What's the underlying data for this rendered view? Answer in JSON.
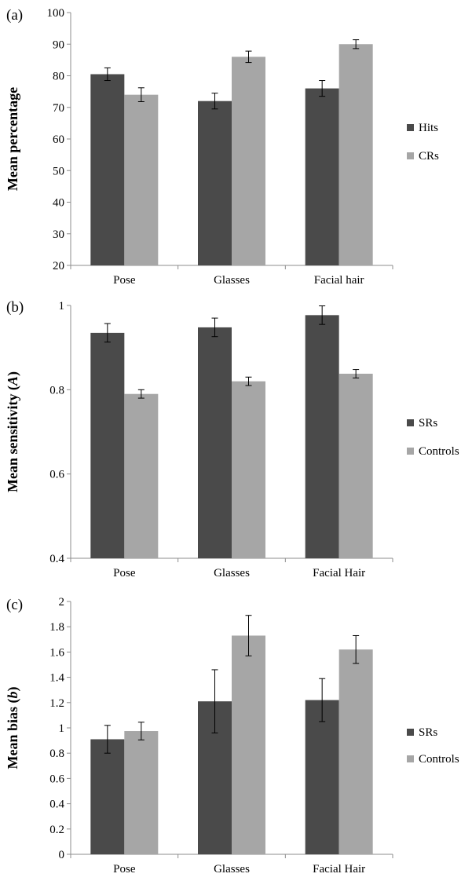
{
  "colors": {
    "series_dark": "#4a4a4a",
    "series_light": "#a6a6a6",
    "axis": "#8c8c8c",
    "error_bar": "#000000"
  },
  "chart_data": [
    {
      "panel_label": "(a)",
      "type": "bar",
      "ylabel": "Mean percentage",
      "ylabel_italic": "",
      "ylabel_after": "",
      "ylim": [
        20,
        100
      ],
      "yticks": [
        "20",
        "30",
        "40",
        "50",
        "60",
        "70",
        "80",
        "90",
        "100"
      ],
      "categories": [
        "Pose",
        "Glasses",
        "Facial hair"
      ],
      "series": [
        {
          "name": "Hits",
          "values": [
            80.5,
            72,
            76
          ],
          "errors": [
            2,
            2.5,
            2.5
          ]
        },
        {
          "name": "CRs",
          "values": [
            74,
            86,
            90
          ],
          "errors": [
            2.2,
            1.8,
            1.4
          ]
        }
      ],
      "grid": false,
      "legend_position": "right"
    },
    {
      "panel_label": "(b)",
      "type": "bar",
      "ylabel": "Mean sensitivity (",
      "ylabel_italic": "A",
      "ylabel_after": ")",
      "ylim": [
        0.4,
        1.0
      ],
      "yticks": [
        "0.4",
        "0.6",
        "0.8",
        "1"
      ],
      "categories": [
        "Pose",
        "Glasses",
        "Facial Hair"
      ],
      "series": [
        {
          "name": "SRs",
          "values": [
            0.935,
            0.948,
            0.977
          ],
          "errors": [
            0.022,
            0.022,
            0.022
          ]
        },
        {
          "name": "Controls",
          "values": [
            0.79,
            0.82,
            0.838
          ],
          "errors": [
            0.01,
            0.01,
            0.01
          ]
        }
      ],
      "grid": false,
      "legend_position": "right"
    },
    {
      "panel_label": "(c)",
      "type": "bar",
      "ylabel": "Mean bias (",
      "ylabel_italic": "b",
      "ylabel_after": ")",
      "ylim": [
        0,
        2
      ],
      "yticks": [
        "0",
        "0.2",
        "0.4",
        "0.6",
        "0.8",
        "1",
        "1.2",
        "1.4",
        "1.6",
        "1.8",
        "2"
      ],
      "categories": [
        "Pose",
        "Glasses",
        "Facial Hair"
      ],
      "series": [
        {
          "name": "SRs",
          "values": [
            0.91,
            1.21,
            1.22
          ],
          "errors": [
            0.11,
            0.25,
            0.17
          ]
        },
        {
          "name": "Controls",
          "values": [
            0.975,
            1.73,
            1.62
          ],
          "errors": [
            0.07,
            0.16,
            0.11
          ]
        }
      ],
      "grid": false,
      "legend_position": "right"
    }
  ]
}
